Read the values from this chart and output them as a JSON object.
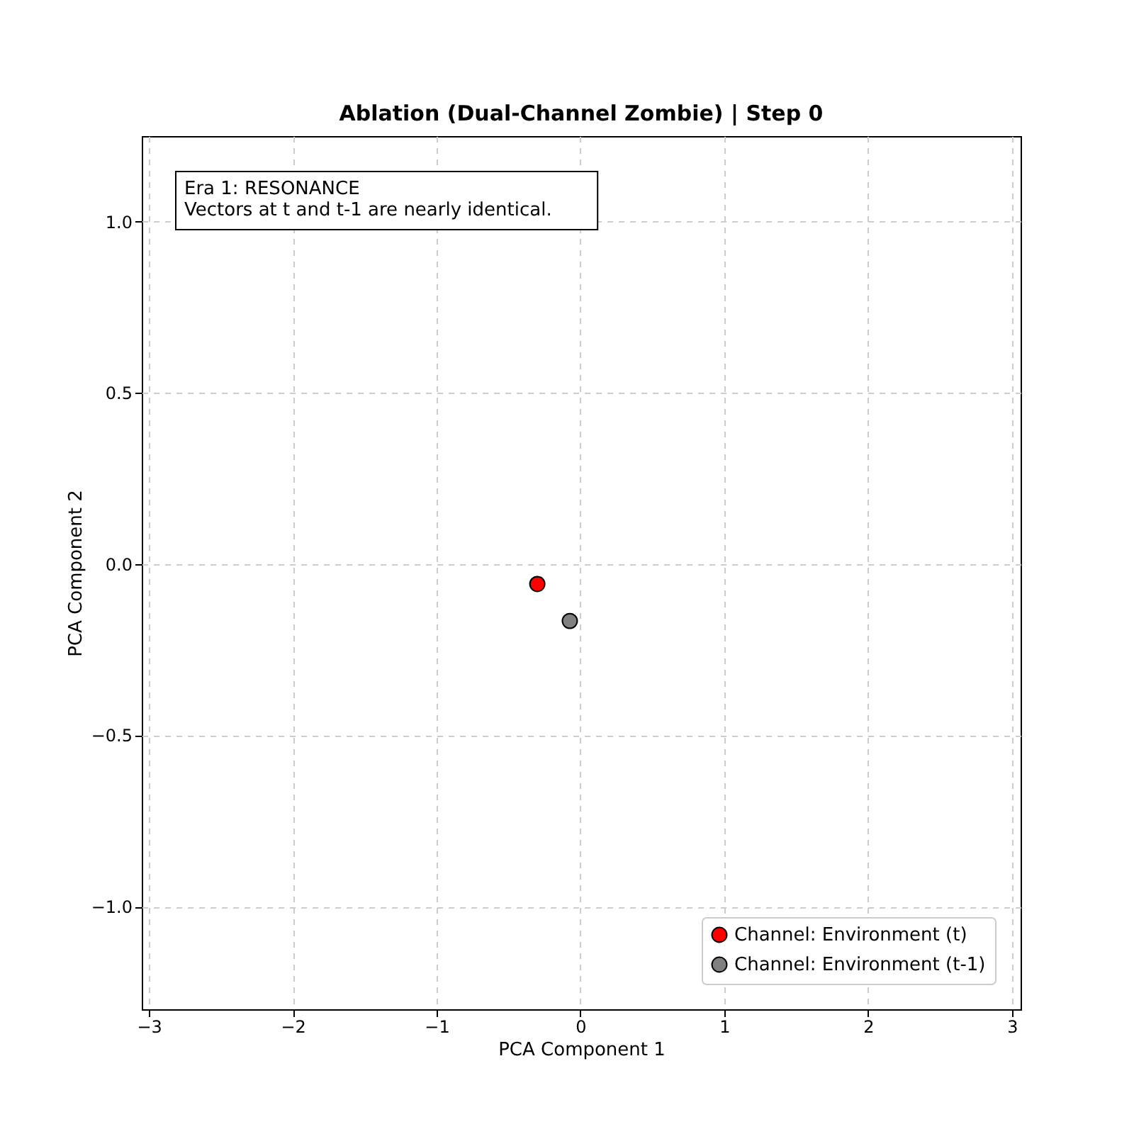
{
  "chart_data": {
    "type": "scatter",
    "title": "Ablation (Dual-Channel Zombie) | Step 0",
    "xlabel": "PCA Component 1",
    "ylabel": "PCA Component 2",
    "series": [
      {
        "name": "Channel: Environment (t)",
        "color": "#ff0000",
        "x": [
          -0.3
        ],
        "values": [
          -0.058
        ]
      },
      {
        "name": "Channel: Environment (t-1)",
        "color": "#808080",
        "x": [
          -0.074
        ],
        "values": [
          -0.166
        ]
      }
    ],
    "annotations": [
      "Era 1: RESONANCE\nVectors at t and t-1 are nearly identical."
    ],
    "xlim": [
      -3.05,
      3.06
    ],
    "ylim": [
      -1.3,
      1.25
    ],
    "xticks": [
      -3,
      -2,
      -1,
      0,
      1,
      2,
      3
    ],
    "yticks": [
      {
        "value": -1,
        "label": "−1.0"
      },
      {
        "value": -0.5,
        "label": "−0.5"
      },
      {
        "value": 0,
        "label": "0.0"
      },
      {
        "value": 0.5,
        "label": "0.5"
      },
      {
        "value": 1,
        "label": "1.0"
      }
    ],
    "grid": true,
    "legend": "bottom right",
    "marker": "circle"
  }
}
